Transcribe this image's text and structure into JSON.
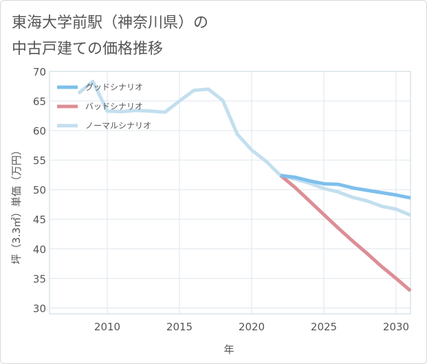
{
  "title_lines": [
    "東海大学前駅（神奈川県）の",
    "中古戸建ての価格推移"
  ],
  "chart_data": {
    "type": "line",
    "title": "東海大学前駅（神奈川県）の中古戸建ての価格推移",
    "xlabel": "年",
    "ylabel": "坪（3.3㎡）単価（万円）",
    "xlim": [
      2006,
      2031
    ],
    "ylim": [
      29,
      70
    ],
    "x_ticks": [
      2010,
      2015,
      2020,
      2025,
      2030
    ],
    "y_ticks": [
      30,
      35,
      40,
      45,
      50,
      55,
      60,
      65,
      70
    ],
    "grid": true,
    "legend_position": "top-left",
    "series": [
      {
        "name": "グッドシナリオ",
        "color": "#7dbfec",
        "x": [
          2022,
          2023,
          2024,
          2025,
          2026,
          2027,
          2028,
          2029,
          2030,
          2031
        ],
        "y": [
          52.4,
          52.1,
          51.5,
          51.0,
          50.9,
          50.3,
          49.9,
          49.5,
          49.1,
          48.6
        ]
      },
      {
        "name": "バッドシナリオ",
        "color": "#dc8e95",
        "x": [
          2022,
          2023,
          2024,
          2025,
          2026,
          2027,
          2028,
          2029,
          2030,
          2031
        ],
        "y": [
          52.4,
          50.4,
          48.1,
          45.8,
          43.5,
          41.3,
          39.2,
          37.0,
          35.0,
          32.9
        ]
      },
      {
        "name": "ノーマルシナリオ",
        "color": "#c3dfee",
        "x": [
          2008,
          2009,
          2010,
          2011,
          2012,
          2013,
          2014,
          2015,
          2016,
          2017,
          2018,
          2019,
          2020,
          2021,
          2022,
          2023,
          2024,
          2025,
          2026,
          2027,
          2028,
          2029,
          2030,
          2031
        ],
        "y": [
          66.3,
          68.3,
          63.3,
          63.2,
          63.4,
          63.3,
          63.1,
          65.0,
          66.8,
          67.0,
          65.1,
          59.4,
          56.7,
          54.8,
          52.4,
          51.8,
          51.1,
          50.2,
          49.6,
          48.7,
          48.1,
          47.2,
          46.7,
          45.7
        ]
      }
    ]
  }
}
